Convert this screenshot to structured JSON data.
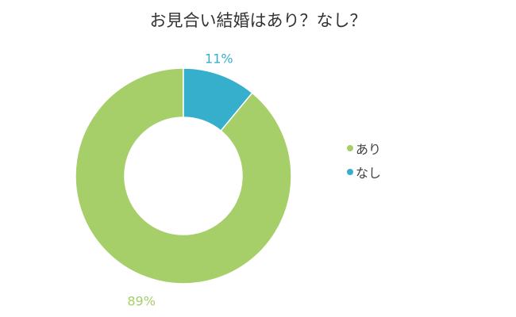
{
  "chart_data": {
    "type": "pie",
    "title": "お見合い結婚はあり？なし？",
    "categories": [
      "あり",
      "なし"
    ],
    "values": [
      89,
      11
    ],
    "labels": [
      "89%",
      "11%"
    ],
    "colors": [
      "#a6cf6a",
      "#35afcc"
    ],
    "legend_position": "right",
    "donut": true
  }
}
